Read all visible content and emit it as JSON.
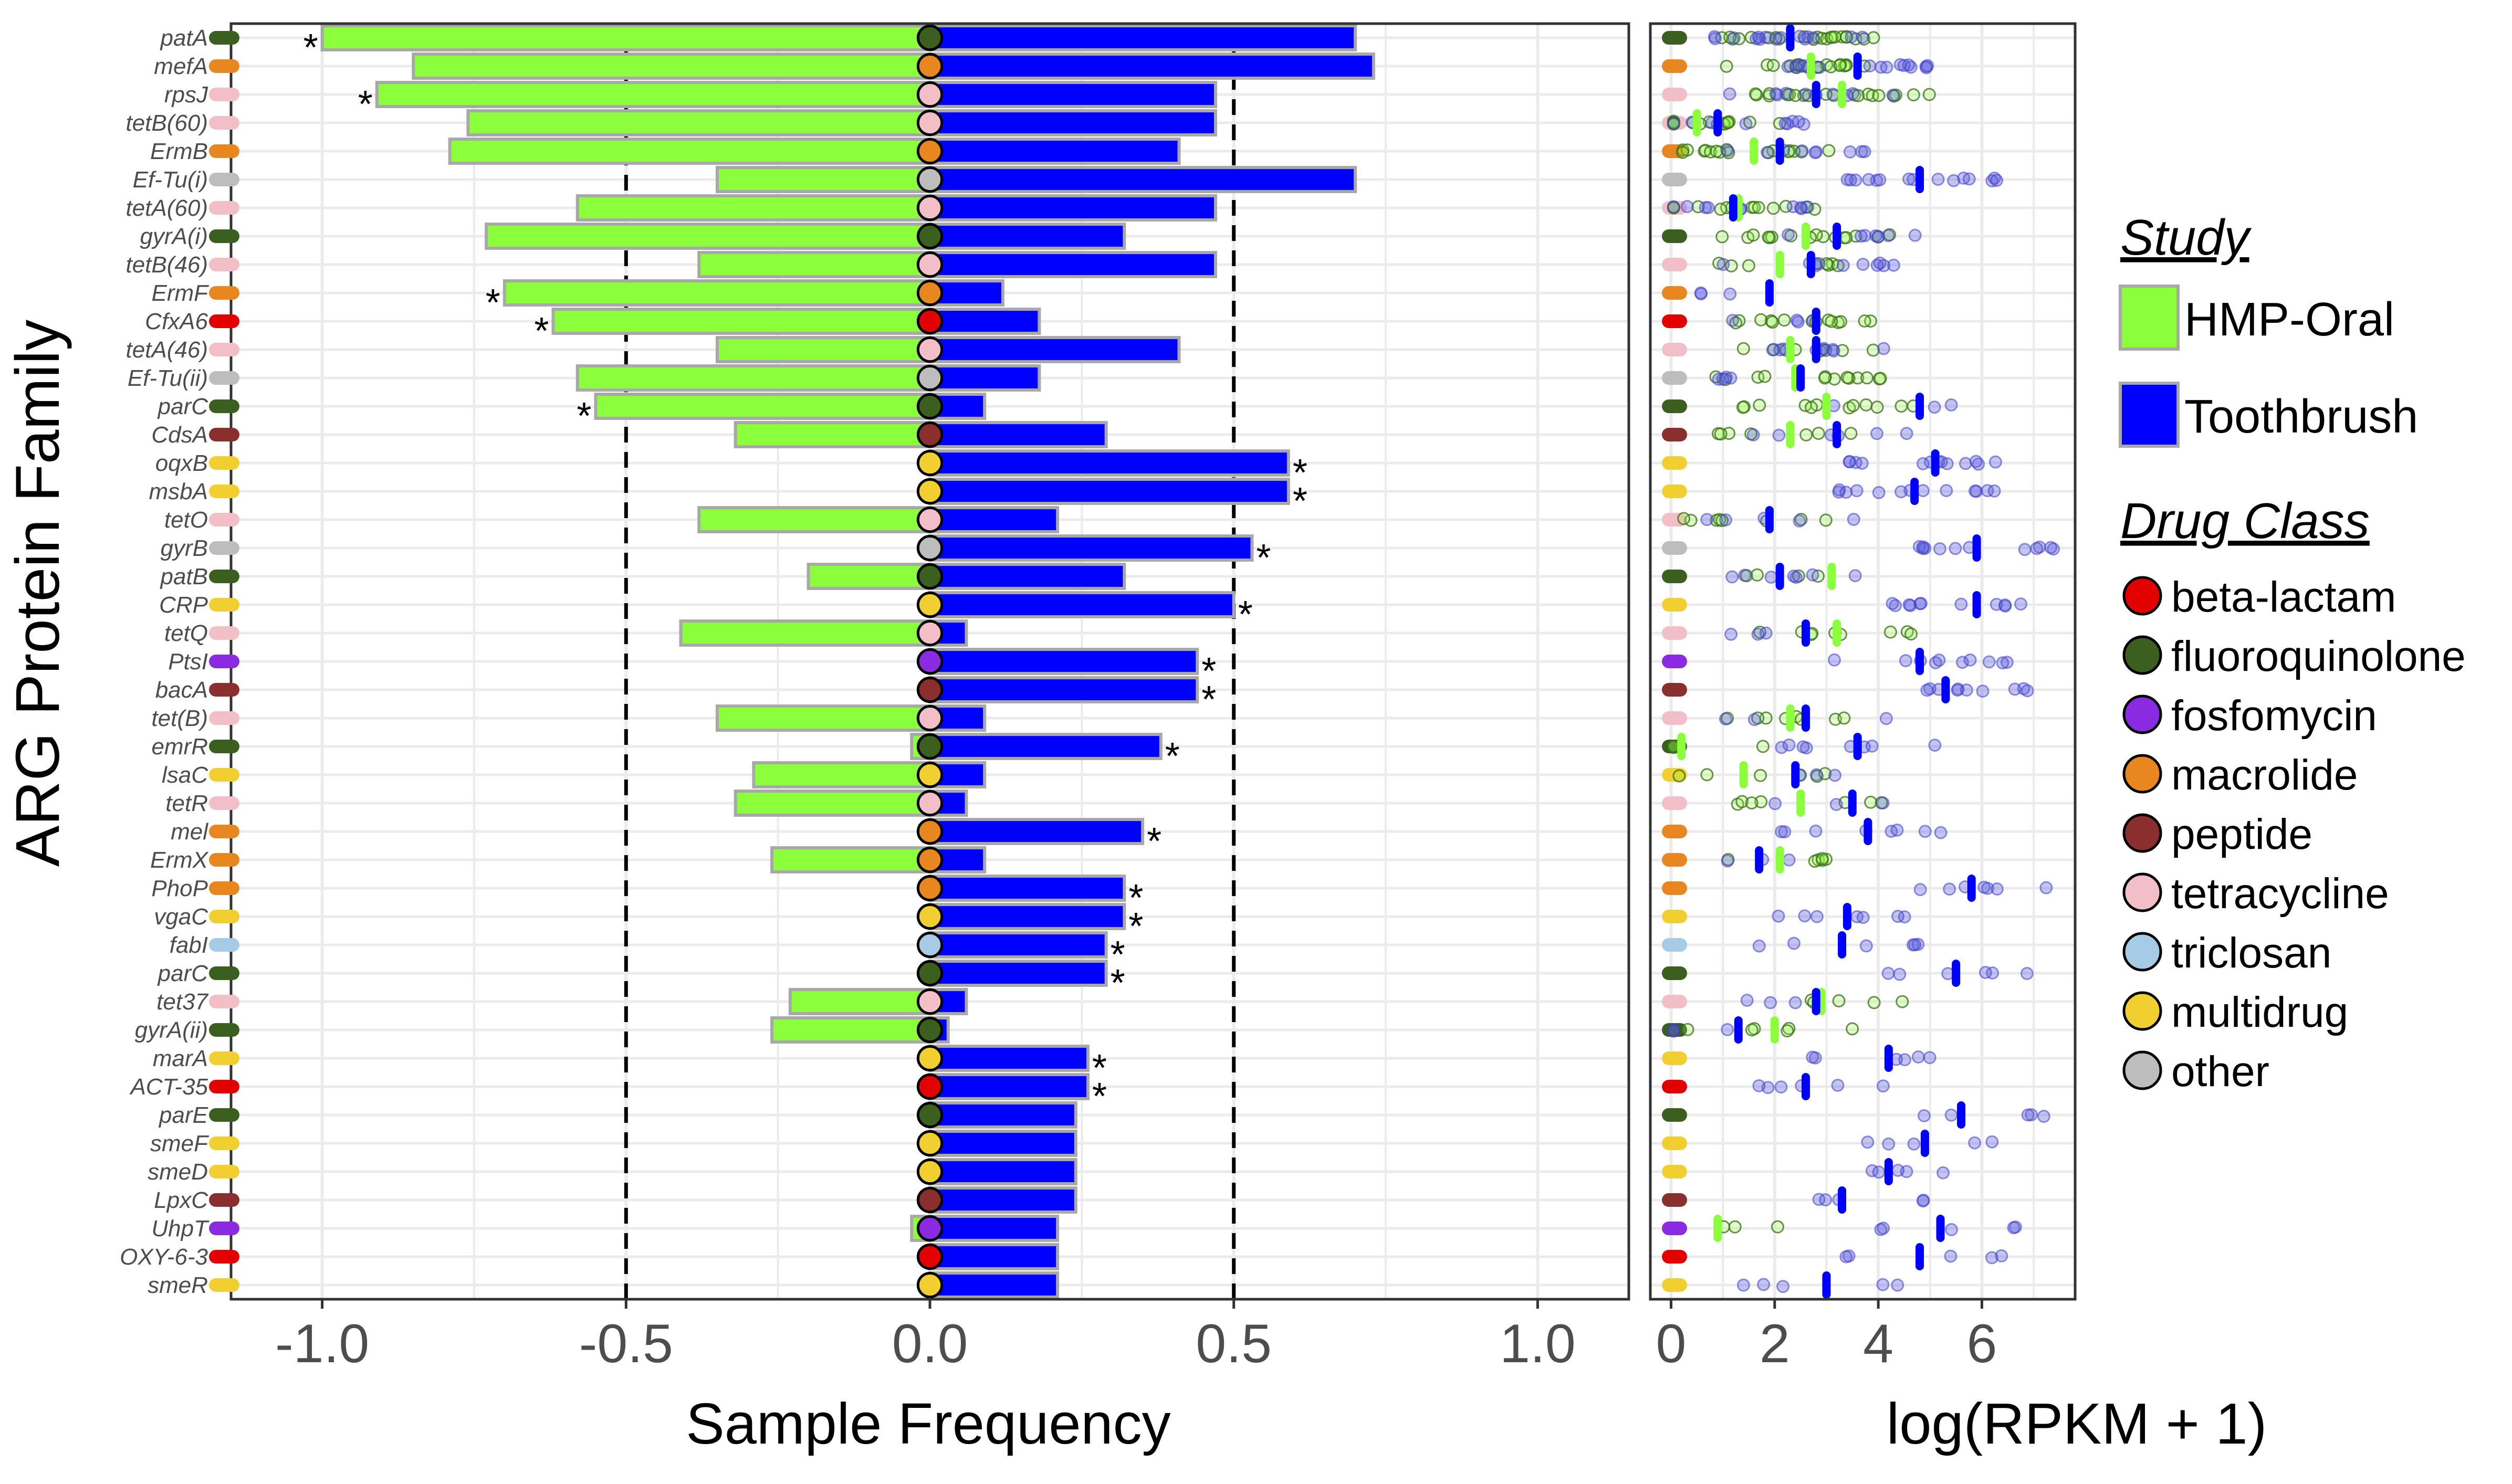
{
  "chart_data": [
    {
      "type": "bar",
      "orientation": "horizontal",
      "xlabel": "Sample Frequency",
      "ylabel": "ARG Protein Family",
      "xlim": [
        -1.15,
        1.15
      ],
      "xticks": [
        -1.0,
        -0.5,
        0.0,
        0.5,
        1.0
      ],
      "xtick_labels": [
        "-1.0",
        "-0.5",
        "0.0",
        "0.5",
        "1.0"
      ],
      "reference_lines": [
        -0.5,
        0.5
      ],
      "grid": true,
      "significance_marker": "*",
      "categories": [
        "patA",
        "mefA",
        "rpsJ",
        "tetB(60)",
        "ErmB",
        "Ef-Tu(i)",
        "tetA(60)",
        "gyrA(i)",
        "tetB(46)",
        "ErmF",
        "CfxA6",
        "tetA(46)",
        "Ef-Tu(ii)",
        "parC",
        "CdsA",
        "oqxB",
        "msbA",
        "tetO",
        "gyrB",
        "patB",
        "CRP",
        "tetQ",
        "PtsI",
        "bacA",
        "tet(B)",
        "emrR",
        "lsaC",
        "tetR",
        "mel",
        "ErmX",
        "PhoP",
        "vgaC",
        "fabI",
        "parC",
        "tet37",
        "gyrA(ii)",
        "marA",
        "ACT-35",
        "parE",
        "smeF",
        "smeD",
        "LpxC",
        "UhpT",
        "OXY-6-3",
        "smeR"
      ],
      "drug_class": [
        "fluoroquinolone",
        "macrolide",
        "tetracycline",
        "tetracycline",
        "macrolide",
        "other",
        "tetracycline",
        "fluoroquinolone",
        "tetracycline",
        "macrolide",
        "beta-lactam",
        "tetracycline",
        "other",
        "fluoroquinolone",
        "peptide",
        "multidrug",
        "multidrug",
        "tetracycline",
        "other",
        "fluoroquinolone",
        "multidrug",
        "tetracycline",
        "fosfomycin",
        "peptide",
        "tetracycline",
        "fluoroquinolone",
        "multidrug",
        "tetracycline",
        "macrolide",
        "macrolide",
        "macrolide",
        "multidrug",
        "triclosan",
        "fluoroquinolone",
        "tetracycline",
        "fluoroquinolone",
        "multidrug",
        "beta-lactam",
        "fluoroquinolone",
        "multidrug",
        "multidrug",
        "peptide",
        "fosfomycin",
        "beta-lactam",
        "multidrug"
      ],
      "series": [
        {
          "name": "HMP-Oral",
          "color": "#8cff3c",
          "values": [
            -1.0,
            -0.85,
            -0.91,
            -0.76,
            -0.79,
            -0.35,
            -0.58,
            -0.73,
            -0.38,
            -0.7,
            -0.62,
            -0.35,
            -0.58,
            -0.55,
            -0.32,
            0.0,
            0.0,
            -0.38,
            0.0,
            -0.2,
            0.0,
            -0.41,
            0.0,
            0.0,
            -0.35,
            -0.03,
            -0.29,
            -0.32,
            0.0,
            -0.26,
            0.0,
            0.0,
            0.0,
            0.0,
            -0.23,
            -0.26,
            0.0,
            0.0,
            0.0,
            0.0,
            0.0,
            0.0,
            -0.03,
            0.0,
            0.0
          ],
          "significant": [
            true,
            false,
            true,
            false,
            false,
            false,
            false,
            false,
            false,
            true,
            true,
            false,
            false,
            true,
            false,
            false,
            false,
            false,
            false,
            false,
            false,
            false,
            false,
            false,
            false,
            false,
            false,
            false,
            false,
            false,
            false,
            false,
            false,
            false,
            false,
            false,
            false,
            false,
            false,
            false,
            false,
            false,
            false,
            false,
            false
          ]
        },
        {
          "name": "Toothbrush",
          "color": "#0000ff",
          "values": [
            0.7,
            0.73,
            0.47,
            0.47,
            0.41,
            0.7,
            0.47,
            0.32,
            0.47,
            0.12,
            0.18,
            0.41,
            0.18,
            0.09,
            0.29,
            0.59,
            0.59,
            0.21,
            0.53,
            0.32,
            0.5,
            0.06,
            0.44,
            0.44,
            0.09,
            0.38,
            0.09,
            0.06,
            0.35,
            0.09,
            0.32,
            0.32,
            0.29,
            0.29,
            0.06,
            0.03,
            0.26,
            0.26,
            0.24,
            0.24,
            0.24,
            0.24,
            0.21,
            0.21,
            0.21
          ],
          "significant": [
            false,
            false,
            false,
            false,
            false,
            false,
            false,
            false,
            false,
            false,
            false,
            false,
            false,
            false,
            false,
            true,
            true,
            false,
            true,
            false,
            true,
            false,
            true,
            true,
            false,
            true,
            false,
            false,
            true,
            false,
            true,
            true,
            true,
            true,
            false,
            false,
            true,
            true,
            false,
            false,
            false,
            false,
            false,
            false,
            false
          ]
        }
      ]
    },
    {
      "type": "scatter",
      "xlabel": "log(RPKM + 1)",
      "xlim": [
        -0.4,
        7.8
      ],
      "xticks": [
        0,
        2,
        4,
        6
      ],
      "xtick_labels": [
        "0",
        "2",
        "4",
        "6"
      ],
      "grid": true,
      "series": [
        {
          "name": "HMP-Oral",
          "color": "#8cff3c",
          "medians": [
            2.3,
            2.7,
            3.3,
            0.5,
            1.6,
            null,
            1.3,
            2.6,
            2.1,
            null,
            2.8,
            2.3,
            2.4,
            3.0,
            2.3,
            null,
            null,
            1.9,
            null,
            3.1,
            null,
            3.2,
            null,
            null,
            2.3,
            0.2,
            1.4,
            2.5,
            null,
            2.1,
            null,
            null,
            null,
            null,
            2.9,
            2.0,
            null,
            null,
            null,
            null,
            null,
            null,
            0.9,
            null,
            null
          ]
        },
        {
          "name": "Toothbrush",
          "color": "#0000ff",
          "medians": [
            2.3,
            3.6,
            2.8,
            0.9,
            2.1,
            4.8,
            1.2,
            3.2,
            2.7,
            1.9,
            2.8,
            2.8,
            2.5,
            4.8,
            3.2,
            5.1,
            4.7,
            1.9,
            5.9,
            2.1,
            5.9,
            2.6,
            4.8,
            5.3,
            2.6,
            3.6,
            2.4,
            3.5,
            3.8,
            1.7,
            5.8,
            3.4,
            3.3,
            5.5,
            2.8,
            1.3,
            4.2,
            2.6,
            5.6,
            4.9,
            4.2,
            3.3,
            5.2,
            4.8,
            3.0
          ]
        }
      ]
    }
  ],
  "legend": {
    "study_title": "Study",
    "study_items": [
      {
        "label": "HMP-Oral",
        "color": "#8cff3c"
      },
      {
        "label": "Toothbrush",
        "color": "#0000ff"
      }
    ],
    "drug_title": "Drug Class",
    "drug_items": [
      {
        "label": "beta-lactam",
        "color": "#e30000"
      },
      {
        "label": "fluoroquinolone",
        "color": "#3a5f1e"
      },
      {
        "label": "fosfomycin",
        "color": "#8a2be2"
      },
      {
        "label": "macrolide",
        "color": "#e8861f"
      },
      {
        "label": "peptide",
        "color": "#8b2e2e"
      },
      {
        "label": "tetracycline",
        "color": "#f2bfc8"
      },
      {
        "label": "triclosan",
        "color": "#a6cbe6"
      },
      {
        "label": "multidrug",
        "color": "#f2cf30"
      },
      {
        "label": "other",
        "color": "#bdbdbd"
      }
    ]
  }
}
